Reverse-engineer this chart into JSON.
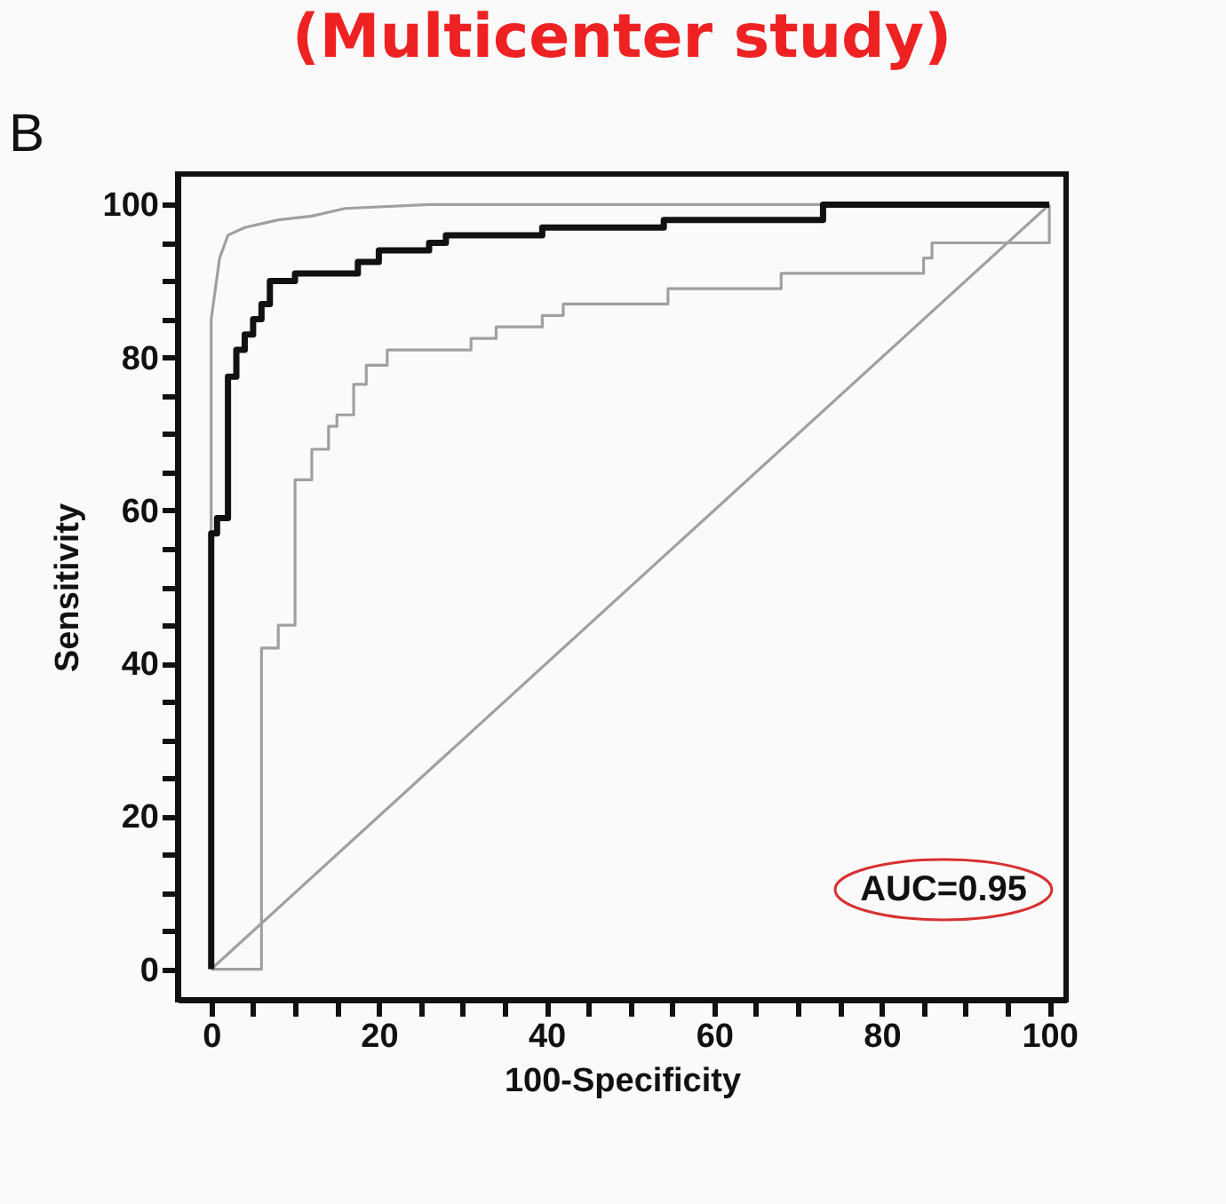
{
  "chart_data": {
    "type": "line",
    "title": "(Multicenter study)",
    "xlabel": "100-Specificity",
    "ylabel": "Sensitivity",
    "annotations": [
      "B",
      "AUC=0.95"
    ],
    "xlim": [
      -4,
      102
    ],
    "ylim": [
      -4,
      104
    ],
    "xticks": [
      0,
      {
        "value": 5,
        "label": null
      },
      {
        "value": 10,
        "label": null
      },
      {
        "value": 15,
        "label": null
      },
      20,
      {
        "value": 25,
        "label": null
      },
      {
        "value": 30,
        "label": null
      },
      {
        "value": 35,
        "label": null
      },
      40,
      {
        "value": 45,
        "label": null
      },
      {
        "value": 50,
        "label": null
      },
      {
        "value": 55,
        "label": null
      },
      60,
      {
        "value": 65,
        "label": null
      },
      {
        "value": 70,
        "label": null
      },
      {
        "value": 75,
        "label": null
      },
      80,
      {
        "value": 85,
        "label": null
      },
      {
        "value": 90,
        "label": null
      },
      {
        "value": 95,
        "label": null
      },
      100
    ],
    "yticks": [
      0,
      {
        "value": 5,
        "label": null
      },
      {
        "value": 10,
        "label": null
      },
      {
        "value": 15,
        "label": null
      },
      20,
      {
        "value": 25,
        "label": null
      },
      {
        "value": 30,
        "label": null
      },
      {
        "value": 35,
        "label": null
      },
      40,
      {
        "value": 45,
        "label": null
      },
      {
        "value": 50,
        "label": null
      },
      {
        "value": 55,
        "label": null
      },
      60,
      {
        "value": 65,
        "label": null
      },
      {
        "value": 70,
        "label": null
      },
      {
        "value": 75,
        "label": null
      },
      80,
      {
        "value": 85,
        "label": null
      },
      {
        "value": 90,
        "label": null
      },
      {
        "value": 95,
        "label": null
      },
      100
    ],
    "grid": false,
    "legend": false,
    "marker": "none",
    "line_style": "solid",
    "series": [
      {
        "color": "#a0a0a0",
        "x": [
          0,
          100
        ],
        "values": [
          0,
          100
        ]
      },
      {
        "color": "#a0a0a0",
        "x": [
          0,
          0,
          0.5,
          1,
          2,
          4,
          8,
          12,
          16,
          26,
          100
        ],
        "values": [
          0,
          85,
          89,
          93,
          96,
          97,
          98,
          98.5,
          99.5,
          100,
          100
        ]
      },
      {
        "color": "#a0a0a0",
        "x": [
          0,
          6,
          6,
          8,
          8,
          10,
          10,
          12,
          12,
          14,
          14,
          15,
          15,
          17,
          17,
          18.5,
          18.5,
          21,
          21,
          31,
          31,
          34,
          34,
          39.5,
          39.5,
          42,
          42,
          54.5,
          54.5,
          68,
          68,
          85,
          85,
          86,
          86,
          100,
          100
        ],
        "values": [
          0,
          0,
          42,
          42,
          45,
          45,
          64,
          64,
          68,
          68,
          71,
          71,
          72.5,
          72.5,
          76.5,
          76.5,
          79,
          79,
          81,
          81,
          82.5,
          82.5,
          84,
          84,
          85.5,
          85.5,
          87,
          87,
          89,
          89,
          91,
          91,
          93,
          93,
          95,
          95,
          100
        ]
      },
      {
        "color": "#111111",
        "x": [
          0,
          0,
          0.7,
          0.7,
          2,
          2,
          3,
          3,
          4,
          4,
          5,
          5,
          6,
          6,
          7,
          7,
          10,
          10,
          17.5,
          17.5,
          20,
          20,
          26,
          26,
          28,
          28,
          39.5,
          39.5,
          54,
          54,
          73,
          73,
          100
        ],
        "values": [
          0,
          57,
          57,
          59,
          59,
          77.5,
          77.5,
          81,
          81,
          83,
          83,
          85,
          85,
          87,
          87,
          90,
          90,
          91,
          91,
          92.5,
          92.5,
          94,
          94,
          95,
          95,
          96,
          96,
          97,
          97,
          98,
          98,
          100,
          100
        ]
      }
    ]
  }
}
